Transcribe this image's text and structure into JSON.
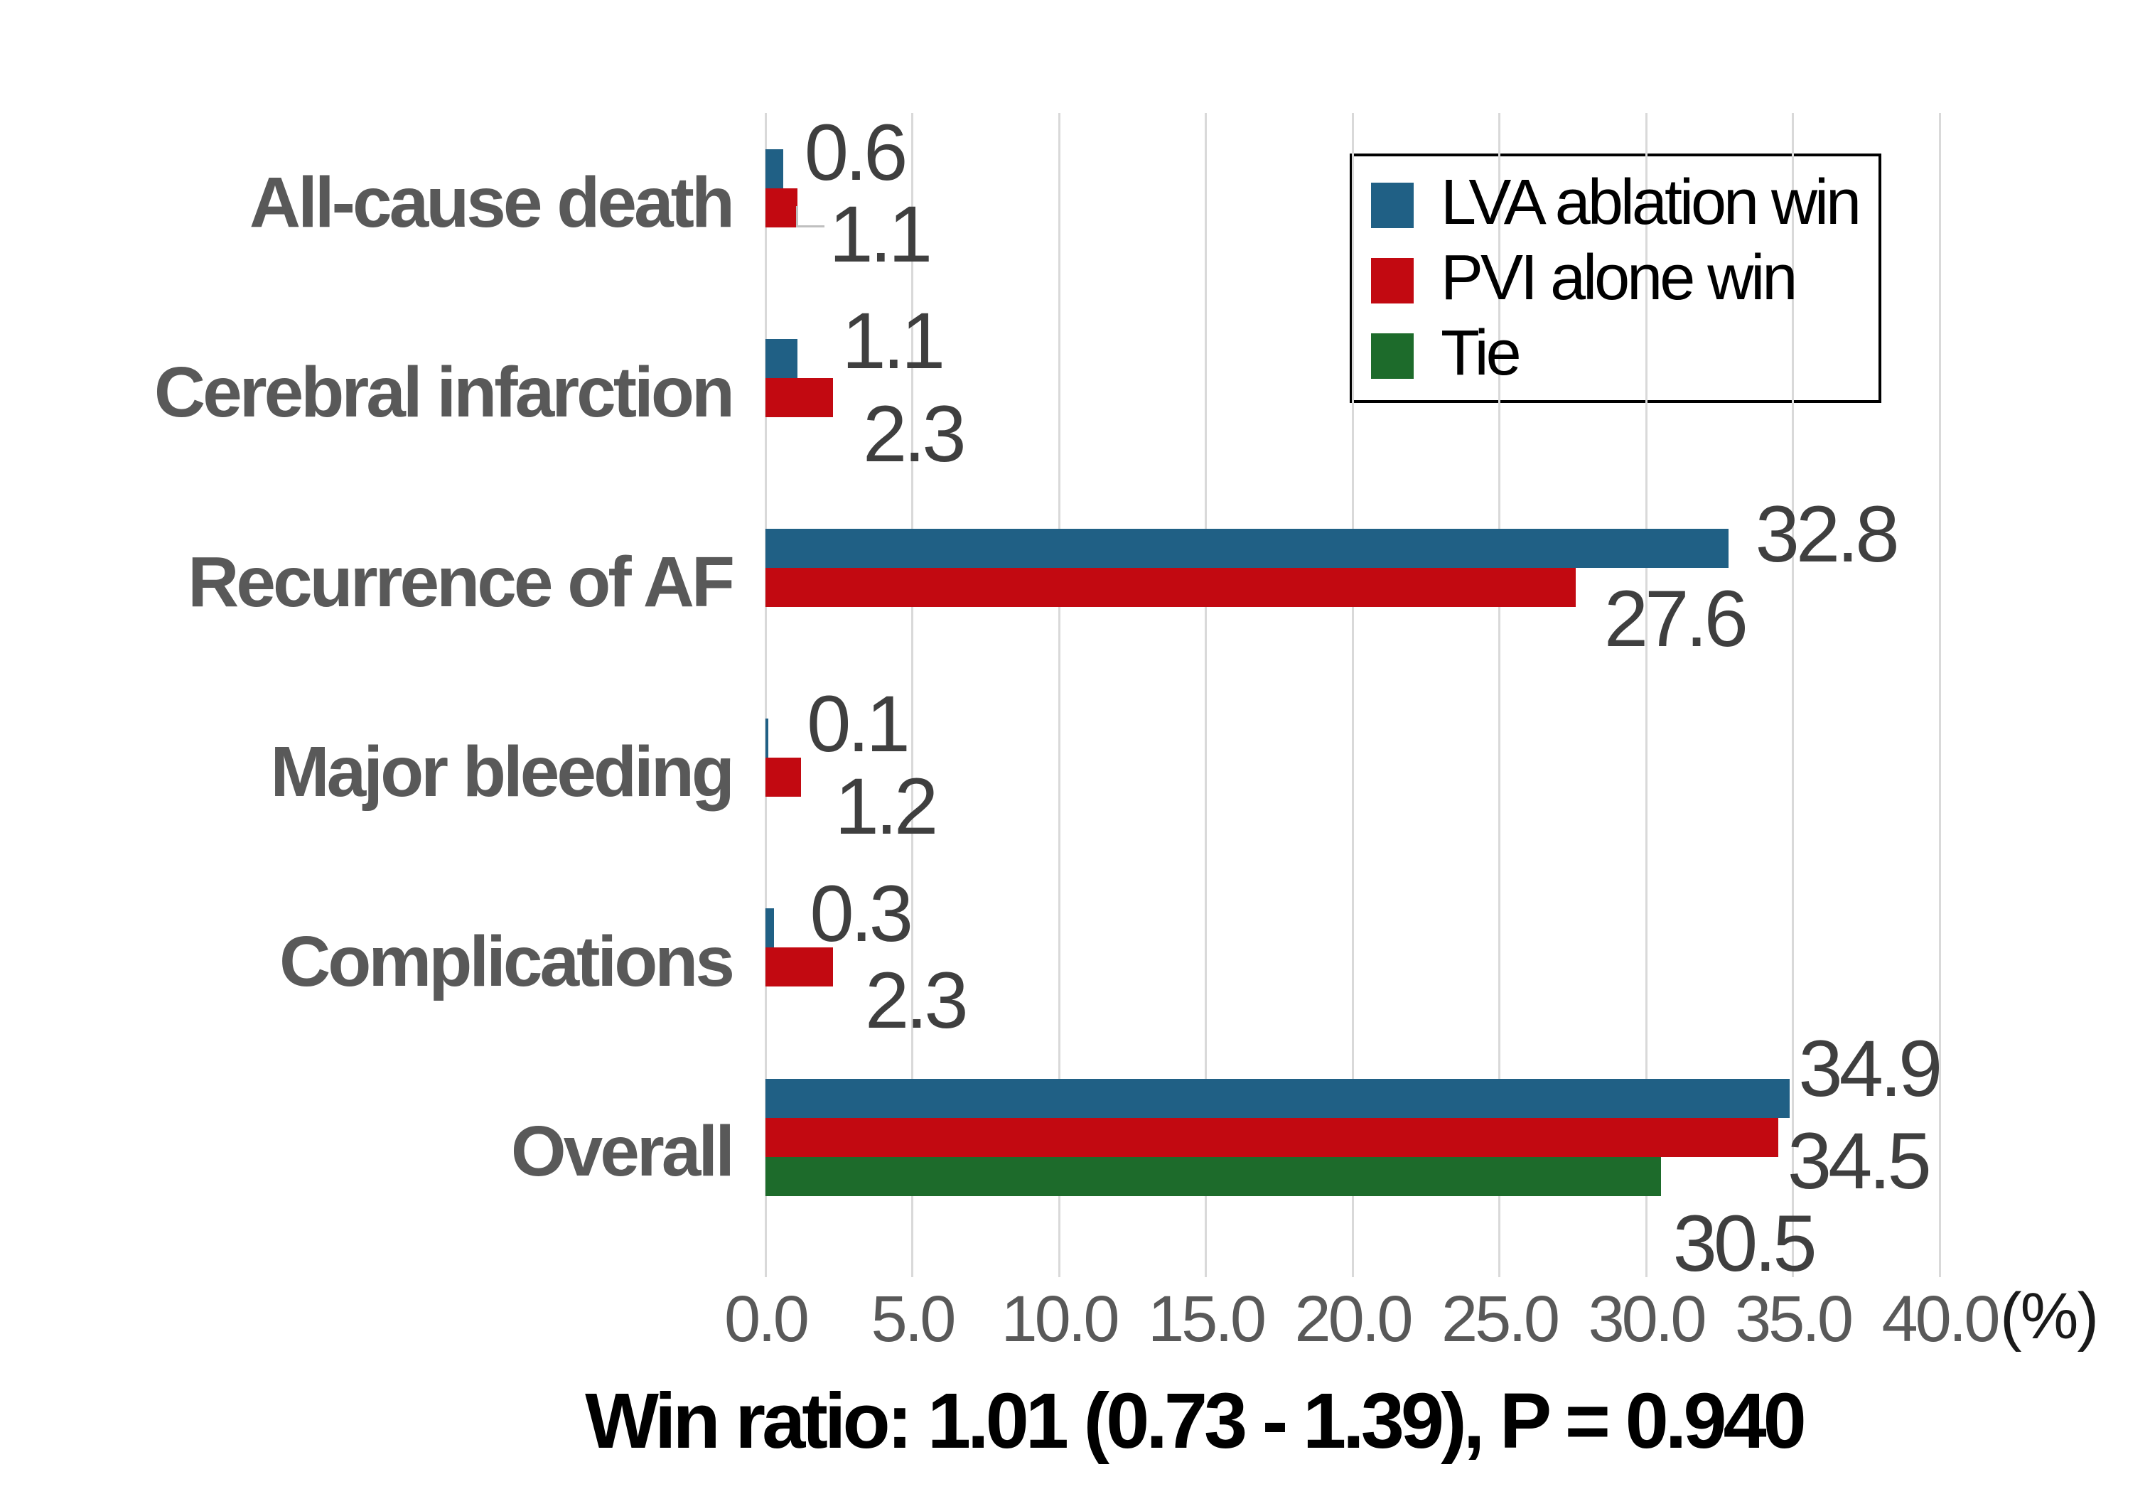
{
  "chart_data": {
    "type": "bar",
    "orientation": "horizontal",
    "categories": [
      "All-cause death",
      "Cerebral infarction",
      "Recurrence of AF",
      "Major bleeding",
      "Complications",
      "Overall"
    ],
    "series": [
      {
        "name": "LVA ablation win",
        "color": "#206085",
        "values": [
          0.6,
          1.1,
          32.8,
          0.1,
          0.3,
          34.9
        ],
        "labels": [
          "0.6",
          "1.1",
          "32.8",
          "0.1",
          "0.3",
          "34.9"
        ]
      },
      {
        "name": "PVI alone win",
        "color": "#C20911",
        "values": [
          1.1,
          2.3,
          27.6,
          1.2,
          2.3,
          34.5
        ],
        "labels": [
          "1.1",
          "2.3",
          "27.6",
          "1.2",
          "2.3",
          "34.5"
        ]
      },
      {
        "name": "Tie",
        "color": "#1D6B2B",
        "values": [
          null,
          null,
          null,
          null,
          null,
          30.5
        ],
        "labels": [
          null,
          null,
          null,
          null,
          null,
          "30.5"
        ]
      }
    ],
    "x_ticks": [
      "0.0",
      "5.0",
      "10.0",
      "15.0",
      "20.0",
      "25.0",
      "30.0",
      "35.0",
      "40.0"
    ],
    "x_unit": "(%)",
    "xlim": [
      0,
      40
    ],
    "grid": true,
    "legend_position": "top-right",
    "footer": "Win ratio: 1.01 (0.73 - 1.39), P = 0.940",
    "colors": {
      "grid": "#D9D9D9",
      "tick_label": "#595959",
      "category_label": "#595959",
      "data_label": "#3F3F3F",
      "footer": "#000000",
      "leader": "#BFBFBF"
    }
  }
}
